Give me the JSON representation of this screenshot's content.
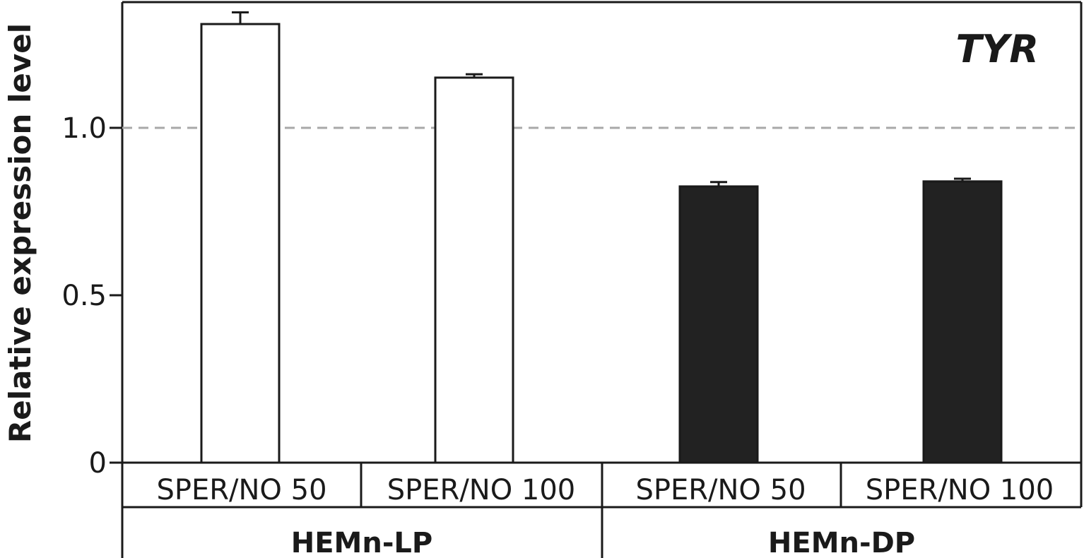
{
  "chart_data": {
    "type": "bar",
    "title": "TYR",
    "ylabel": "Relative expression level",
    "xlabel": "",
    "ylim": [
      0,
      1.4
    ],
    "yticks": [
      {
        "value": 0,
        "label": "0"
      },
      {
        "value": 0.5,
        "label": "0.5"
      },
      {
        "value": 1.0,
        "label": "1.0"
      }
    ],
    "reference_line": 1.0,
    "grid": false,
    "groups": [
      {
        "name": "HEMn-LP",
        "fill": "#ffffff"
      },
      {
        "name": "HEMn-DP",
        "fill": "#222222"
      }
    ],
    "categories": [
      "SPER/NO 50",
      "SPER/NO 100",
      "SPER/NO 50",
      "SPER/NO 100"
    ],
    "bar_groups": [
      0,
      0,
      1,
      1
    ],
    "values": [
      1.31,
      1.15,
      0.825,
      0.84
    ],
    "errors": [
      0.035,
      0.01,
      0.013,
      0.008
    ]
  }
}
